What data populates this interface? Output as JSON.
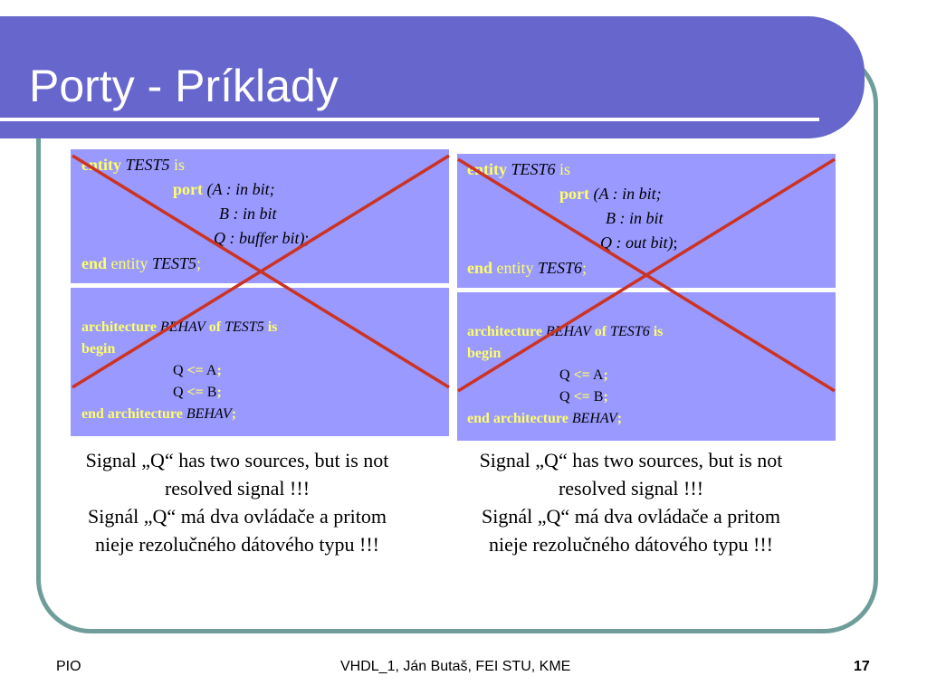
{
  "title": "Porty - Príklady",
  "left": {
    "entity_kw": "entity",
    "entity_name": "TEST5",
    "is_kw": "is",
    "port_kw": "port",
    "port_a": "(A : in bit;",
    "port_b": "B : in bit",
    "port_q": "Q : buffer bit)",
    "port_end": ";",
    "end_kw": "end",
    "end_entity_kw": "entity",
    "end_name": "TEST5",
    "end_semi": ";",
    "arch_kw": "architecture",
    "arch_name": "BEHAV",
    "of_kw": "of",
    "arch_entity": "TEST5",
    "arch_is": "is",
    "begin_kw": "begin",
    "assign1_lhs": "Q",
    "assign1_op": "<=",
    "assign1_rhs": "A",
    "assign1_semi": ";",
    "assign2_lhs": "Q",
    "assign2_op": "<=",
    "assign2_rhs": "B",
    "assign2_semi": ";",
    "end_arch_kw": "end architecture",
    "end_arch_name": "BEHAV",
    "end_arch_semi": ";",
    "caption": [
      "Signal „Q“ has two sources, but is not",
      "resolved signal !!!",
      "Signál „Q“ má dva ovládače a pritom",
      "nieje rezolučného dátového typu !!!"
    ]
  },
  "right": {
    "entity_kw": "entity",
    "entity_name": "TEST6",
    "is_kw": "is",
    "port_kw": "port",
    "port_a": "(A : in bit;",
    "port_b": "B : in bit",
    "port_q": "Q : out bit)",
    "port_end": ";",
    "end_kw": "end",
    "end_entity_kw": "entity",
    "end_name": "TEST6",
    "end_semi": ";",
    "arch_kw": "architecture",
    "arch_name": "BEHAV",
    "of_kw": "of",
    "arch_entity": "TEST6",
    "arch_is": "is",
    "begin_kw": "begin",
    "assign1_lhs": "Q",
    "assign1_op": "<=",
    "assign1_rhs": "A",
    "assign1_semi": ";",
    "assign2_lhs": "Q",
    "assign2_op": "<=",
    "assign2_rhs": "B",
    "assign2_semi": ";",
    "end_arch_kw": "end architecture",
    "end_arch_name": "BEHAV",
    "end_arch_semi": ";",
    "caption": [
      "Signal „Q“ has two sources, but is not",
      "resolved signal !!!",
      "Signál „Q“ má dva ovládače a pritom",
      "nieje rezolučného dátového typu !!!"
    ]
  },
  "footer": {
    "left": "PIO",
    "center": "VHDL_1, Ján Butaš, FEI STU, KME",
    "page": "17"
  },
  "colors": {
    "title_bar": "#6666cc",
    "frame": "#6f9e9a",
    "code_box": "#9999ff",
    "keyword": "#ffff66",
    "cross": "#cc3322"
  }
}
